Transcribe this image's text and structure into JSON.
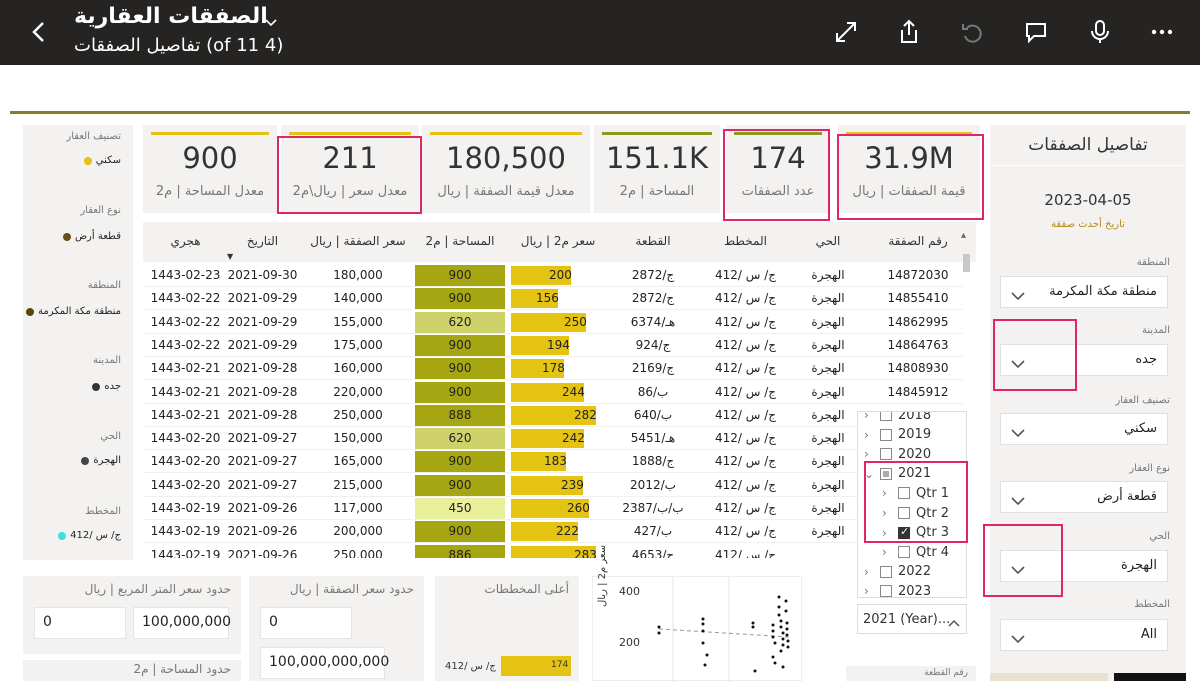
{
  "appbar": {
    "title": "الصفقات العقارية",
    "subtitle": "(4 of 11) تفاصيل الصفقات",
    "icons": [
      "back-icon",
      "chevron-down-icon",
      "expand-icon",
      "share-icon",
      "undo-icon",
      "comment-icon",
      "microphone-icon",
      "more-icon"
    ]
  },
  "legend": {
    "property_class_label": "تصنيف العقار",
    "property_class_value": "سكني",
    "property_type_label": "نوع العقار",
    "property_type_value": "قطعة أرض",
    "region_label": "المنطقة",
    "region_value": "منطقة مكة المكرمة",
    "city_label": "المدينة",
    "city_value": "جده",
    "district_label": "الحي",
    "district_value": "الهجرة",
    "plan_label": "المخطط",
    "plan_value": "ج/ س /412"
  },
  "kpis": [
    {
      "value": "900",
      "label": "معدل المساحة | م2",
      "color": "#e5c312"
    },
    {
      "value": "211",
      "label": "معدل سعر | ريال\\م2",
      "color": "#e5c312"
    },
    {
      "value": "180,500",
      "label": "معدل قيمة الصفقة | ريال",
      "color": "#e5c312"
    },
    {
      "value": "151.1K",
      "label": "المساحة | م2",
      "color": "#8a9a1a"
    },
    {
      "value": "174",
      "label": "عدد الصفقات",
      "color": "#8a9a1a"
    },
    {
      "value": "31.9M",
      "label": "قيمة الصفقات | ريال",
      "color": "#e5c312"
    }
  ],
  "panel": {
    "title": "تفاصيل الصفقات",
    "latest_date": "2023-04-05",
    "latest_date_label": "تاريخ أحدث صفقة",
    "slicers": [
      {
        "label": "المنطقة",
        "value": "منطقة مكة المكرمة"
      },
      {
        "label": "المدينة",
        "value": "جده"
      },
      {
        "label": "تصنيف العقار",
        "value": "سكني"
      },
      {
        "label": "نوع العقار",
        "value": "قطعة أرض"
      },
      {
        "label": "الحي",
        "value": "الهجرة"
      },
      {
        "label": "المخطط",
        "value": "All"
      }
    ]
  },
  "table": {
    "headers": {
      "deal_no": "رقم الصفقة",
      "district": "الحي",
      "plan": "المخطط",
      "parcel": "القطعة",
      "price_per_m2": "سعر م2 | ريال",
      "area": "المساحة | م2",
      "deal_price": "سعر الصفقة | ريال",
      "date": "التاريخ",
      "hijri": "هجري"
    },
    "rows": [
      {
        "deal_no": "14872030",
        "district": "الهجرة",
        "plan": "ج/ س /412",
        "parcel": "ج/2872",
        "ppm": 200,
        "area": 900,
        "price": "180,000",
        "date": "2021-09-30",
        "hijri": "1443-02-23"
      },
      {
        "deal_no": "14855410",
        "district": "الهجرة",
        "plan": "ج/ س /412",
        "parcel": "ج/2872",
        "ppm": 156,
        "area": 900,
        "price": "140,000",
        "date": "2021-09-29",
        "hijri": "1443-02-22"
      },
      {
        "deal_no": "14862995",
        "district": "الهجرة",
        "plan": "ج/ س /412",
        "parcel": "هـ/6374",
        "ppm": 250,
        "area": 620,
        "price": "155,000",
        "date": "2021-09-29",
        "hijri": "1443-02-22"
      },
      {
        "deal_no": "14864763",
        "district": "الهجرة",
        "plan": "ج/ س /412",
        "parcel": "ج/924",
        "ppm": 194,
        "area": 900,
        "price": "175,000",
        "date": "2021-09-29",
        "hijri": "1443-02-22"
      },
      {
        "deal_no": "14808930",
        "district": "الهجرة",
        "plan": "ج/ س /412",
        "parcel": "ج/2169",
        "ppm": 178,
        "area": 900,
        "price": "160,000",
        "date": "2021-09-28",
        "hijri": "1443-02-21"
      },
      {
        "deal_no": "14845912",
        "district": "الهجرة",
        "plan": "ج/ س /412",
        "parcel": "ب/86",
        "ppm": 244,
        "area": 900,
        "price": "220,000",
        "date": "2021-09-28",
        "hijri": "1443-02-21"
      },
      {
        "deal_no": "",
        "district": "الهجرة",
        "plan": "ج/ س /412",
        "parcel": "ب/640",
        "ppm": 282,
        "area": 888,
        "price": "250,000",
        "date": "2021-09-28",
        "hijri": "1443-02-21"
      },
      {
        "deal_no": "",
        "district": "الهجرة",
        "plan": "ج/ س /412",
        "parcel": "هـ/5451",
        "ppm": 242,
        "area": 620,
        "price": "150,000",
        "date": "2021-09-27",
        "hijri": "1443-02-20"
      },
      {
        "deal_no": "",
        "district": "الهجرة",
        "plan": "ج/ س /412",
        "parcel": "ج/1888",
        "ppm": 183,
        "area": 900,
        "price": "165,000",
        "date": "2021-09-27",
        "hijri": "1443-02-20"
      },
      {
        "deal_no": "",
        "district": "الهجرة",
        "plan": "ج/ س /412",
        "parcel": "ب/2012",
        "ppm": 239,
        "area": 900,
        "price": "215,000",
        "date": "2021-09-27",
        "hijri": "1443-02-20"
      },
      {
        "deal_no": "",
        "district": "الهجرة",
        "plan": "ج/ س /412",
        "parcel": "ب/ب/2387",
        "ppm": 260,
        "area": 450,
        "price": "117,000",
        "date": "2021-09-26",
        "hijri": "1443-02-19"
      },
      {
        "deal_no": "",
        "district": "الهجرة",
        "plan": "ج/ س /412",
        "parcel": "ب/427",
        "ppm": 222,
        "area": 900,
        "price": "200,000",
        "date": "2021-09-26",
        "hijri": "1443-02-19"
      },
      {
        "deal_no": "",
        "district": "",
        "plan": "ج/ س /412",
        "parcel": "ج/4653",
        "ppm": 283,
        "area": 886,
        "price": "250,000",
        "date": "2021-09-26",
        "hijri": "1443-02-19"
      }
    ]
  },
  "date_hierarchy": {
    "items": [
      {
        "label": "2018",
        "state": "none",
        "indent": 0,
        "expand": "›"
      },
      {
        "label": "2019",
        "state": "none",
        "indent": 0,
        "expand": "›"
      },
      {
        "label": "2020",
        "state": "none",
        "indent": 0,
        "expand": "›"
      },
      {
        "label": "2021",
        "state": "partial",
        "indent": 0,
        "expand": "⌄"
      },
      {
        "label": "Qtr 1",
        "state": "none",
        "indent": 1,
        "expand": "›"
      },
      {
        "label": "Qtr 2",
        "state": "none",
        "indent": 1,
        "expand": "›"
      },
      {
        "label": "Qtr 3",
        "state": "checked",
        "indent": 1,
        "expand": "›"
      },
      {
        "label": "Qtr 4",
        "state": "none",
        "indent": 1,
        "expand": "›"
      },
      {
        "label": "2022",
        "state": "none",
        "indent": 0,
        "expand": "›"
      },
      {
        "label": "2023",
        "state": "none",
        "indent": 0,
        "expand": "›"
      }
    ],
    "selected": "2021 (Year)..."
  },
  "bottom": {
    "ppm_limits_label": "حدود سعر المتر المربع | ريال",
    "ppm_min": "0",
    "ppm_max": "100,000,000",
    "area_limits_label": "حدود المساحة | م2",
    "price_limits_label": "حدود سعر الصفقة | ريال",
    "price_min": "0",
    "price_max": "100,000,000,000",
    "top_plans_label": "أعلى المخططات",
    "top_plan_name": "ج/ س /412",
    "top_plan_value": "174",
    "scatter_ylabel": "سعر م2 | ريال",
    "scatter_y_ticks": [
      "400",
      "200"
    ],
    "parcel_label": "رقم القطعة"
  }
}
